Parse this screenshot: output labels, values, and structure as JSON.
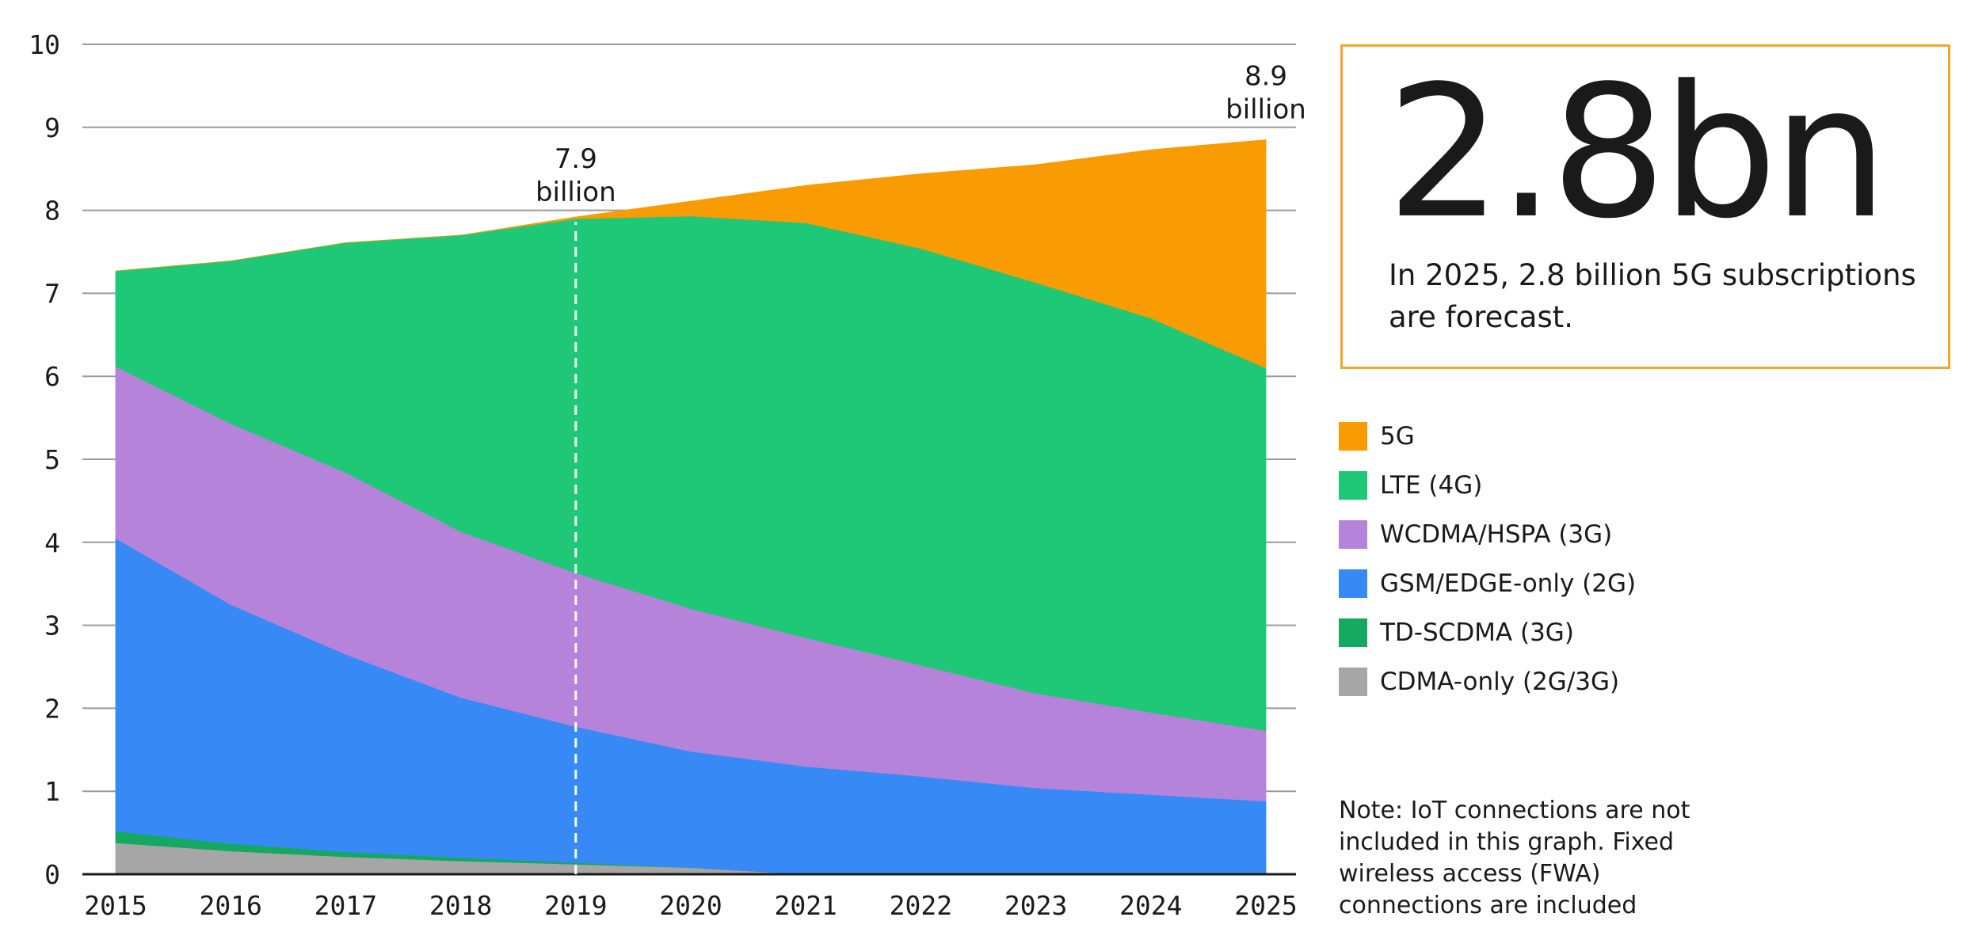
{
  "chart_data": {
    "type": "area",
    "stacked": true,
    "x": [
      2015,
      2016,
      2017,
      2018,
      2019,
      2020,
      2021,
      2022,
      2023,
      2024,
      2025
    ],
    "ylim": [
      0,
      10
    ],
    "yticks": [
      0,
      1,
      2,
      3,
      4,
      5,
      6,
      7,
      8,
      9,
      10
    ],
    "grid": true,
    "legend_position": "right",
    "series": [
      {
        "name": "CDMA-only (2G/3G)",
        "color": "#a6a6a6",
        "values": [
          0.38,
          0.28,
          0.21,
          0.16,
          0.12,
          0.08,
          0.0,
          0.0,
          0.0,
          0.0,
          0.0
        ]
      },
      {
        "name": "TD-SCDMA (3G)",
        "color": "#15a861",
        "values": [
          0.14,
          0.09,
          0.06,
          0.04,
          0.02,
          0.0,
          0.0,
          0.0,
          0.0,
          0.0,
          0.0
        ]
      },
      {
        "name": "GSM/EDGE-only (2G)",
        "color": "#378af5",
        "values": [
          3.53,
          2.88,
          2.38,
          1.93,
          1.64,
          1.4,
          1.3,
          1.18,
          1.04,
          0.96,
          0.88
        ]
      },
      {
        "name": "WCDMA/HSPA (3G)",
        "color": "#b683da",
        "values": [
          2.07,
          2.18,
          2.19,
          2.0,
          1.85,
          1.72,
          1.55,
          1.34,
          1.14,
          0.99,
          0.85
        ]
      },
      {
        "name": "LTE (4G)",
        "color": "#1fc876",
        "values": [
          1.15,
          1.96,
          2.77,
          3.57,
          4.27,
          4.73,
          5.0,
          5.02,
          4.95,
          4.75,
          4.37
        ]
      },
      {
        "name": "5G",
        "color": "#f99b02",
        "values": [
          0.0,
          0.0,
          0.0,
          0.0,
          0.02,
          0.18,
          0.45,
          0.9,
          1.42,
          2.03,
          2.75
        ]
      }
    ],
    "annotations": [
      {
        "x": 2019,
        "y": 7.9,
        "label_line1": "7.9",
        "label_line2": "billion",
        "style": "dashed-vertical-line"
      },
      {
        "x": 2025,
        "y": 8.9,
        "label_line1": "8.9",
        "label_line2": "billion"
      }
    ]
  },
  "callout": {
    "big": "2.8bn",
    "text": "In 2025, 2.8 billion 5G subscriptions are forecast.",
    "border_color": "#f5a623"
  },
  "legend": {
    "items": [
      {
        "label": "5G",
        "color": "#f99b02"
      },
      {
        "label": "LTE (4G)",
        "color": "#1fc876"
      },
      {
        "label": "WCDMA/HSPA (3G)",
        "color": "#b683da"
      },
      {
        "label": "GSM/EDGE-only (2G)",
        "color": "#378af5"
      },
      {
        "label": "TD-SCDMA (3G)",
        "color": "#15a861"
      },
      {
        "label": "CDMA-only (2G/3G)",
        "color": "#a6a6a6"
      }
    ]
  },
  "note": {
    "text": "Note: IoT connections are not included in this graph. Fixed wireless access (FWA) connections are included"
  }
}
